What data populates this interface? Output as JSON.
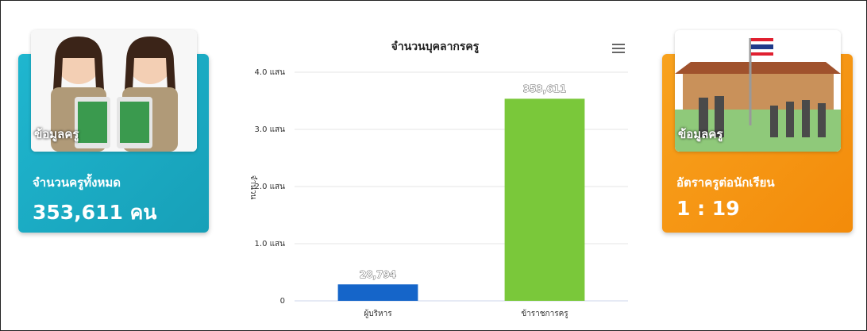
{
  "cards": [
    {
      "image_caption": "ข้อมูลครู",
      "label": "จำนวนครูทั้งหมด",
      "value": "353,611 คน"
    },
    {
      "image_caption": "ข้อมูลครู",
      "label": "อัตราครูต่อนักเรียน",
      "value": "1 : 19"
    }
  ],
  "chart_data": {
    "type": "bar",
    "title": "จำนวนบุคลากรครู",
    "y_label": "จำนวน",
    "categories": [
      "ผู้บริหาร",
      "ข้าราชการครู"
    ],
    "values": [
      28794,
      353611
    ],
    "value_labels": [
      "28,794",
      "353,611"
    ],
    "colors": [
      "#1565c9",
      "#7ac83a"
    ],
    "ylim": [
      0,
      400000
    ],
    "yticks": [
      0,
      {
        "value": 100000,
        "label": "1.0 แสน"
      },
      {
        "value": 200000,
        "label": "2.0 แสน"
      },
      {
        "value": 300000,
        "label": "3.0 แสน"
      },
      {
        "value": 400000,
        "label": "4.0 แสน"
      }
    ],
    "grid": true
  }
}
